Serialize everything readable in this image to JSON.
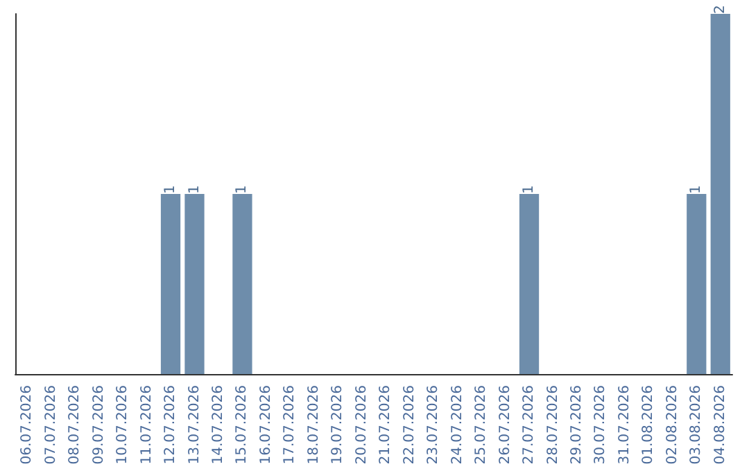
{
  "chart_data": {
    "type": "bar",
    "categories": [
      "06.07.2026",
      "07.07.2026",
      "08.07.2026",
      "09.07.2026",
      "10.07.2026",
      "11.07.2026",
      "12.07.2026",
      "13.07.2026",
      "14.07.2026",
      "15.07.2026",
      "16.07.2026",
      "17.07.2026",
      "18.07.2026",
      "19.07.2026",
      "20.07.2026",
      "21.07.2026",
      "22.07.2026",
      "23.07.2026",
      "24.07.2026",
      "25.07.2026",
      "26.07.2026",
      "27.07.2026",
      "28.07.2026",
      "29.07.2026",
      "30.07.2026",
      "31.07.2026",
      "01.08.2026",
      "02.08.2026",
      "03.08.2026",
      "04.08.2026"
    ],
    "values": [
      0,
      0,
      0,
      0,
      0,
      0,
      1,
      1,
      0,
      1,
      0,
      0,
      0,
      0,
      0,
      0,
      0,
      0,
      0,
      0,
      0,
      1,
      0,
      0,
      0,
      0,
      0,
      0,
      1,
      2
    ],
    "value_labels": [
      null,
      null,
      null,
      null,
      null,
      null,
      "1",
      "1",
      null,
      "1",
      null,
      null,
      null,
      null,
      null,
      null,
      null,
      null,
      null,
      null,
      null,
      "1",
      null,
      null,
      null,
      null,
      null,
      null,
      "1",
      "2"
    ],
    "color": "#6e8dab",
    "grid": false,
    "tick_labels": "x"
  }
}
